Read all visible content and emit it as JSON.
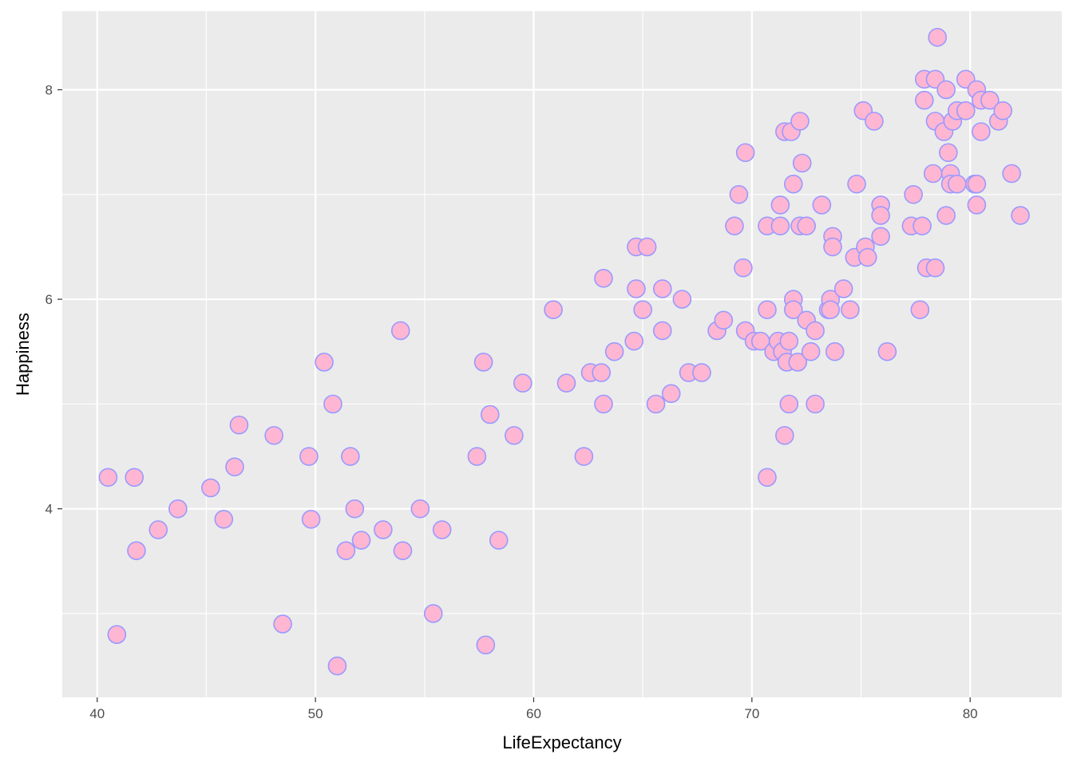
{
  "chart_data": {
    "type": "scatter",
    "title": "",
    "xlabel": "LifeExpectancy",
    "ylabel": "Happiness",
    "xlim": [
      38.4,
      84.2
    ],
    "ylim": [
      2.2,
      8.75
    ],
    "x_major_ticks": [
      40,
      50,
      60,
      70,
      80
    ],
    "y_major_ticks": [
      4,
      6,
      8
    ],
    "x_tick_labels": [
      "40",
      "50",
      "60",
      "70",
      "80"
    ],
    "y_tick_labels": [
      "4",
      "6",
      "8"
    ],
    "grid": true,
    "colors": {
      "panel_background": "#ebebeb",
      "grid_line": "#ffffff",
      "point_fill": "#ffb6d2",
      "point_stroke": "#9999ff"
    },
    "points": [
      {
        "x": 40.5,
        "y": 4.3
      },
      {
        "x": 40.9,
        "y": 2.8
      },
      {
        "x": 41.7,
        "y": 4.3
      },
      {
        "x": 41.8,
        "y": 3.6
      },
      {
        "x": 42.8,
        "y": 3.8
      },
      {
        "x": 43.7,
        "y": 4.0
      },
      {
        "x": 45.2,
        "y": 4.2
      },
      {
        "x": 45.8,
        "y": 3.9
      },
      {
        "x": 46.3,
        "y": 4.4
      },
      {
        "x": 46.5,
        "y": 4.8
      },
      {
        "x": 48.1,
        "y": 4.7
      },
      {
        "x": 48.5,
        "y": 2.9
      },
      {
        "x": 49.7,
        "y": 4.5
      },
      {
        "x": 49.8,
        "y": 3.9
      },
      {
        "x": 50.4,
        "y": 5.4
      },
      {
        "x": 50.8,
        "y": 5.0
      },
      {
        "x": 51.0,
        "y": 2.5
      },
      {
        "x": 51.4,
        "y": 3.6
      },
      {
        "x": 51.6,
        "y": 4.5
      },
      {
        "x": 51.8,
        "y": 4.0
      },
      {
        "x": 52.1,
        "y": 3.7
      },
      {
        "x": 53.1,
        "y": 3.8
      },
      {
        "x": 53.9,
        "y": 5.7
      },
      {
        "x": 54.0,
        "y": 3.6
      },
      {
        "x": 54.8,
        "y": 4.0
      },
      {
        "x": 55.4,
        "y": 3.0
      },
      {
        "x": 55.8,
        "y": 3.8
      },
      {
        "x": 57.4,
        "y": 4.5
      },
      {
        "x": 57.7,
        "y": 5.4
      },
      {
        "x": 57.8,
        "y": 2.7
      },
      {
        "x": 58.0,
        "y": 4.9
      },
      {
        "x": 58.4,
        "y": 3.7
      },
      {
        "x": 59.1,
        "y": 4.7
      },
      {
        "x": 59.5,
        "y": 5.2
      },
      {
        "x": 60.9,
        "y": 5.9
      },
      {
        "x": 61.5,
        "y": 5.2
      },
      {
        "x": 62.3,
        "y": 4.5
      },
      {
        "x": 62.6,
        "y": 5.3
      },
      {
        "x": 63.1,
        "y": 5.3
      },
      {
        "x": 63.2,
        "y": 6.2
      },
      {
        "x": 63.2,
        "y": 5.0
      },
      {
        "x": 63.7,
        "y": 5.5
      },
      {
        "x": 64.6,
        "y": 5.6
      },
      {
        "x": 64.7,
        "y": 6.5
      },
      {
        "x": 64.7,
        "y": 6.1
      },
      {
        "x": 65.0,
        "y": 5.9
      },
      {
        "x": 65.2,
        "y": 6.5
      },
      {
        "x": 65.6,
        "y": 5.0
      },
      {
        "x": 65.9,
        "y": 6.1
      },
      {
        "x": 65.9,
        "y": 5.7
      },
      {
        "x": 66.3,
        "y": 5.1
      },
      {
        "x": 66.8,
        "y": 6.0
      },
      {
        "x": 67.1,
        "y": 5.3
      },
      {
        "x": 67.7,
        "y": 5.3
      },
      {
        "x": 68.4,
        "y": 5.7
      },
      {
        "x": 68.7,
        "y": 5.8
      },
      {
        "x": 69.2,
        "y": 6.7
      },
      {
        "x": 69.4,
        "y": 7.0
      },
      {
        "x": 69.6,
        "y": 6.3
      },
      {
        "x": 69.7,
        "y": 7.4
      },
      {
        "x": 69.7,
        "y": 5.7
      },
      {
        "x": 70.1,
        "y": 5.6
      },
      {
        "x": 70.4,
        "y": 5.6
      },
      {
        "x": 70.7,
        "y": 6.7
      },
      {
        "x": 70.7,
        "y": 5.9
      },
      {
        "x": 70.7,
        "y": 4.3
      },
      {
        "x": 71.0,
        "y": 5.5
      },
      {
        "x": 71.2,
        "y": 5.6
      },
      {
        "x": 71.3,
        "y": 6.9
      },
      {
        "x": 71.3,
        "y": 6.7
      },
      {
        "x": 71.4,
        "y": 5.5
      },
      {
        "x": 71.5,
        "y": 7.6
      },
      {
        "x": 71.5,
        "y": 4.7
      },
      {
        "x": 71.6,
        "y": 5.4
      },
      {
        "x": 71.7,
        "y": 5.6
      },
      {
        "x": 71.7,
        "y": 5.0
      },
      {
        "x": 71.8,
        "y": 7.6
      },
      {
        "x": 71.9,
        "y": 7.1
      },
      {
        "x": 71.9,
        "y": 6.0
      },
      {
        "x": 71.9,
        "y": 5.9
      },
      {
        "x": 72.1,
        "y": 5.4
      },
      {
        "x": 72.2,
        "y": 7.7
      },
      {
        "x": 72.2,
        "y": 6.7
      },
      {
        "x": 72.3,
        "y": 7.3
      },
      {
        "x": 72.5,
        "y": 6.7
      },
      {
        "x": 72.5,
        "y": 5.8
      },
      {
        "x": 72.7,
        "y": 5.5
      },
      {
        "x": 72.9,
        "y": 5.7
      },
      {
        "x": 72.9,
        "y": 5.0
      },
      {
        "x": 73.2,
        "y": 6.9
      },
      {
        "x": 73.5,
        "y": 5.9
      },
      {
        "x": 73.6,
        "y": 6.0
      },
      {
        "x": 73.6,
        "y": 5.9
      },
      {
        "x": 73.7,
        "y": 6.6
      },
      {
        "x": 73.7,
        "y": 6.5
      },
      {
        "x": 73.8,
        "y": 5.5
      },
      {
        "x": 74.2,
        "y": 6.1
      },
      {
        "x": 74.5,
        "y": 5.9
      },
      {
        "x": 74.7,
        "y": 6.4
      },
      {
        "x": 74.8,
        "y": 7.1
      },
      {
        "x": 75.1,
        "y": 7.8
      },
      {
        "x": 75.2,
        "y": 6.5
      },
      {
        "x": 75.3,
        "y": 6.4
      },
      {
        "x": 75.6,
        "y": 7.7
      },
      {
        "x": 75.9,
        "y": 6.9
      },
      {
        "x": 75.9,
        "y": 6.8
      },
      {
        "x": 75.9,
        "y": 6.6
      },
      {
        "x": 76.2,
        "y": 5.5
      },
      {
        "x": 77.3,
        "y": 6.7
      },
      {
        "x": 77.4,
        "y": 7.0
      },
      {
        "x": 77.7,
        "y": 5.9
      },
      {
        "x": 77.8,
        "y": 6.7
      },
      {
        "x": 77.9,
        "y": 8.1
      },
      {
        "x": 77.9,
        "y": 7.9
      },
      {
        "x": 78.0,
        "y": 6.3
      },
      {
        "x": 78.3,
        "y": 7.2
      },
      {
        "x": 78.4,
        "y": 6.3
      },
      {
        "x": 78.4,
        "y": 8.1
      },
      {
        "x": 78.4,
        "y": 7.7
      },
      {
        "x": 78.5,
        "y": 8.5
      },
      {
        "x": 78.8,
        "y": 7.6
      },
      {
        "x": 78.9,
        "y": 6.8
      },
      {
        "x": 78.9,
        "y": 8.0
      },
      {
        "x": 79.0,
        "y": 7.4
      },
      {
        "x": 79.1,
        "y": 7.2
      },
      {
        "x": 79.1,
        "y": 7.1
      },
      {
        "x": 79.2,
        "y": 7.7
      },
      {
        "x": 79.4,
        "y": 7.8
      },
      {
        "x": 79.4,
        "y": 7.1
      },
      {
        "x": 79.8,
        "y": 8.1
      },
      {
        "x": 79.8,
        "y": 7.8
      },
      {
        "x": 80.2,
        "y": 7.1
      },
      {
        "x": 80.3,
        "y": 6.9
      },
      {
        "x": 80.3,
        "y": 8.0
      },
      {
        "x": 80.3,
        "y": 7.1
      },
      {
        "x": 80.5,
        "y": 7.9
      },
      {
        "x": 80.5,
        "y": 7.6
      },
      {
        "x": 80.9,
        "y": 7.9
      },
      {
        "x": 81.3,
        "y": 7.7
      },
      {
        "x": 81.5,
        "y": 7.8
      },
      {
        "x": 81.9,
        "y": 7.2
      },
      {
        "x": 82.3,
        "y": 6.8
      }
    ]
  }
}
